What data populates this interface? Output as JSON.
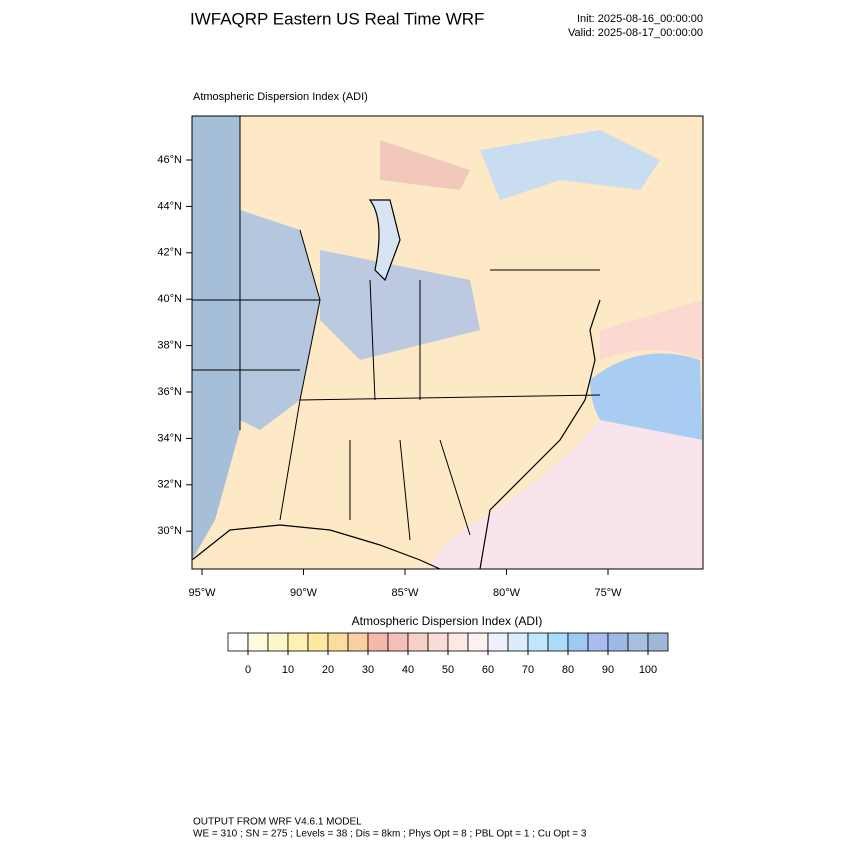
{
  "header": {
    "title": "IWFAQRP Eastern US Real Time WRF",
    "init": "Init: 2025-08-16_00:00:00",
    "valid": "Valid: 2025-08-17_00:00:00"
  },
  "map": {
    "subtitle": "Atmospheric Dispersion Index   (ADI)",
    "lat_ticks": [
      {
        "value": 46,
        "label": "46°N"
      },
      {
        "value": 44,
        "label": "44°N"
      },
      {
        "value": 42,
        "label": "42°N"
      },
      {
        "value": 40,
        "label": "40°N"
      },
      {
        "value": 38,
        "label": "38°N"
      },
      {
        "value": 36,
        "label": "36°N"
      },
      {
        "value": 34,
        "label": "34°N"
      },
      {
        "value": 32,
        "label": "32°N"
      },
      {
        "value": 30,
        "label": "30°N"
      }
    ],
    "lon_ticks": [
      {
        "value": -95,
        "label": "95°W"
      },
      {
        "value": -90,
        "label": "90°W"
      },
      {
        "value": -85,
        "label": "85°W"
      },
      {
        "value": -80,
        "label": "80°W"
      },
      {
        "value": -75,
        "label": "75°W"
      }
    ]
  },
  "colorbar": {
    "title": "Atmospheric Dispersion Index  (ADI)",
    "ticks": [
      0,
      10,
      20,
      30,
      40,
      50,
      60,
      70,
      80,
      90,
      100
    ],
    "colors": [
      "#ffffff",
      "#fffbe0",
      "#fff6c8",
      "#fff0b4",
      "#ffe8a0",
      "#fddca0",
      "#fbcfa0",
      "#f6b8a8",
      "#f5c0b8",
      "#f8d0c8",
      "#fadcd6",
      "#fce8e4",
      "#fdf0f0",
      "#f0f0fc",
      "#dcecfc",
      "#c0e6fc",
      "#a8dcfa",
      "#a0c8f4",
      "#a8bcf0",
      "#a0b8e8",
      "#a8c0e0",
      "#a0b8d8"
    ]
  },
  "footer": {
    "line1": "OUTPUT FROM WRF V4.6.1 MODEL",
    "line2": "WE = 310 ; SN = 275 ; Levels = 38 ; Dis = 8km ; Phys Opt = 8 ; PBL Opt = 1 ; Cu Opt = 3"
  }
}
